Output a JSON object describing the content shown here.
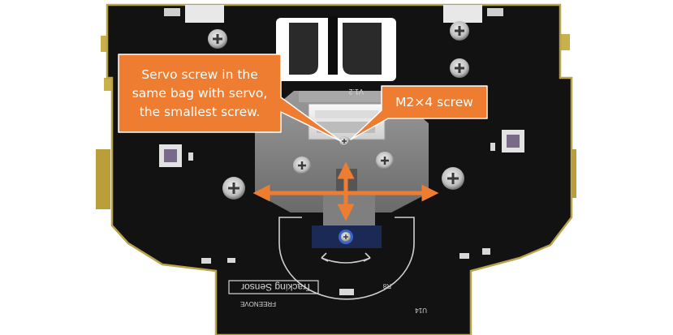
{
  "callouts": {
    "servo_screw": {
      "lines": [
        "Servo screw in the",
        "same bag with servo,",
        "the smallest screw."
      ]
    },
    "m2_screw": {
      "text": "M2×4 screw"
    }
  },
  "board_labels": {
    "sensor": "Tracking Sensor",
    "brand": "FREENOVE",
    "version": "V1.2",
    "u14": "U14",
    "r8": "R8"
  },
  "colors": {
    "callout_fill": "#ee7d31",
    "callout_stroke": "#ffffff",
    "arrow": "#ee7d31",
    "pcb": "#111111",
    "pcb_edge": "#b8a24a",
    "silkscreen": "#d8d8d8"
  },
  "icons": {
    "arrows": "four-way-move-arrows",
    "screws": "phillips-screw-head"
  }
}
